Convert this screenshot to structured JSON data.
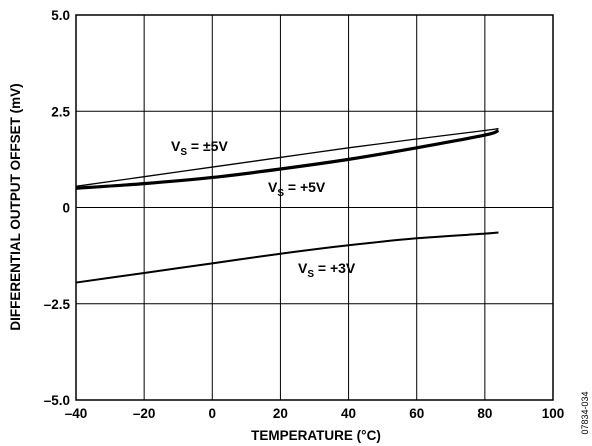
{
  "chart_data": {
    "type": "line",
    "xlabel": "TEMPERATURE (°C)",
    "ylabel": "DIFFERENTIAL OUTPUT OFFSET (mV)",
    "xlim": [
      -40,
      100
    ],
    "ylim": [
      -5.0,
      5.0
    ],
    "x_ticks": [
      -40,
      -20,
      0,
      20,
      40,
      60,
      80,
      100
    ],
    "x_tick_labels": [
      "–40",
      "–20",
      "0",
      "20",
      "40",
      "60",
      "80",
      "100"
    ],
    "y_ticks": [
      -5.0,
      -2.5,
      0,
      2.5,
      5.0
    ],
    "y_tick_labels": [
      "–5.0",
      "–2.5",
      "0",
      "2.5",
      "5.0"
    ],
    "grid": true,
    "series": [
      {
        "name": "VS = ±5V",
        "label_main": "V",
        "label_sub": "S",
        "label_rest": " = ±5V",
        "x": [
          -40,
          -20,
          0,
          20,
          40,
          60,
          80,
          84
        ],
        "y": [
          0.55,
          0.8,
          1.05,
          1.3,
          1.55,
          1.78,
          2.0,
          2.05
        ],
        "color": "#000000",
        "width": 1.3
      },
      {
        "name": "VS = +5V",
        "label_main": "V",
        "label_sub": "S",
        "label_rest": " = +5V",
        "x": [
          -40,
          -20,
          0,
          20,
          40,
          60,
          80,
          84
        ],
        "y": [
          0.5,
          0.62,
          0.78,
          1.0,
          1.25,
          1.55,
          1.88,
          2.0
        ],
        "color": "#000000",
        "width": 3.2
      },
      {
        "name": "VS = +3V",
        "label_main": "V",
        "label_sub": "S",
        "label_rest": " = +3V",
        "x": [
          -40,
          -20,
          0,
          20,
          40,
          60,
          80,
          84
        ],
        "y": [
          -1.95,
          -1.7,
          -1.45,
          -1.2,
          -0.98,
          -0.8,
          -0.68,
          -0.65
        ],
        "color": "#000000",
        "width": 2.0
      }
    ],
    "watermark": "07834-034"
  }
}
